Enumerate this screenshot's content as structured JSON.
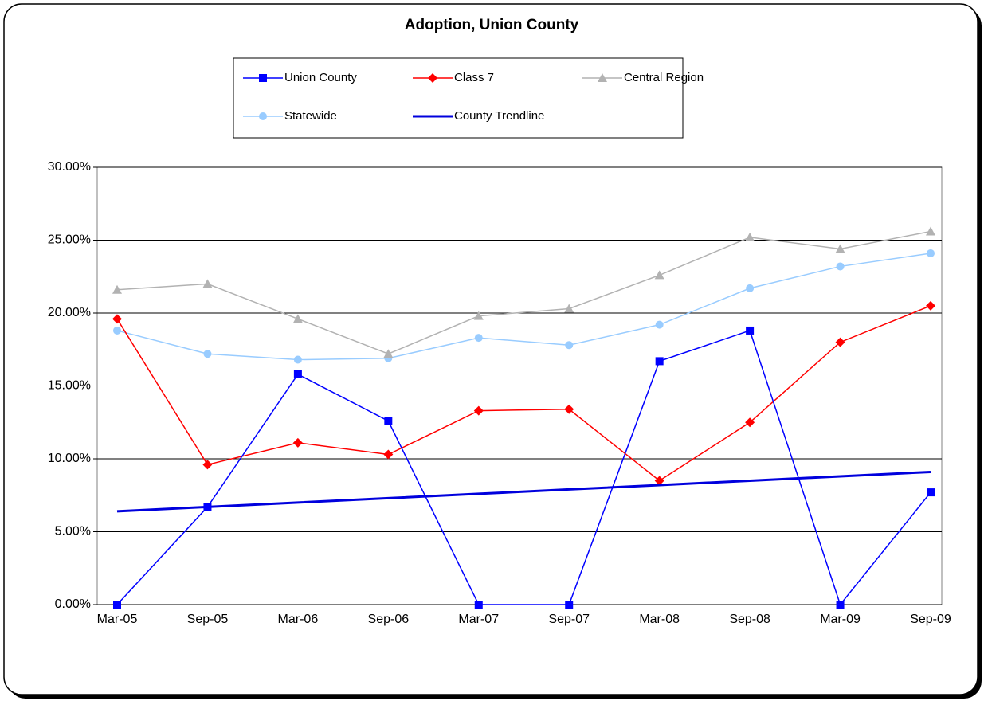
{
  "chart_data": {
    "type": "line",
    "title": "Adoption, Union County",
    "categories": [
      "Mar-05",
      "Sep-05",
      "Mar-06",
      "Sep-06",
      "Mar-07",
      "Sep-07",
      "Mar-08",
      "Sep-08",
      "Mar-09",
      "Sep-09"
    ],
    "series": [
      {
        "name": "Union County",
        "color": "#0000ff",
        "marker": "square",
        "values": [
          0,
          6.7,
          15.8,
          12.6,
          0,
          0,
          16.7,
          18.8,
          0,
          7.7
        ]
      },
      {
        "name": "Class 7",
        "color": "#ff0000",
        "marker": "diamond",
        "values": [
          19.6,
          9.6,
          11.1,
          10.3,
          13.3,
          13.4,
          8.5,
          12.5,
          18.0,
          20.5
        ]
      },
      {
        "name": "Central Region",
        "color": "#b2b2b2",
        "marker": "triangle",
        "values": [
          21.6,
          22.0,
          19.6,
          17.2,
          19.8,
          20.3,
          22.6,
          25.2,
          24.4,
          25.6
        ]
      },
      {
        "name": "Statewide",
        "color": "#99ccff",
        "marker": "circle",
        "values": [
          18.8,
          17.2,
          16.8,
          16.9,
          18.3,
          17.8,
          19.2,
          21.7,
          23.2,
          24.1
        ]
      },
      {
        "name": "County Trendline",
        "color": "#0000dd",
        "marker": "none",
        "width": 3,
        "values": [
          6.4,
          6.7,
          7.0,
          7.3,
          7.6,
          7.9,
          8.2,
          8.5,
          8.8,
          9.1
        ]
      }
    ],
    "ylim": [
      0,
      30
    ],
    "yticks": [
      {
        "value": 0,
        "label": "0.00%"
      },
      {
        "value": 5,
        "label": "5.00%"
      },
      {
        "value": 10,
        "label": "10.00%"
      },
      {
        "value": 15,
        "label": "15.00%"
      },
      {
        "value": 20,
        "label": "20.00%"
      },
      {
        "value": 25,
        "label": "25.00%"
      },
      {
        "value": 30,
        "label": "30.00%"
      }
    ],
    "grid": true,
    "legend": "top"
  }
}
